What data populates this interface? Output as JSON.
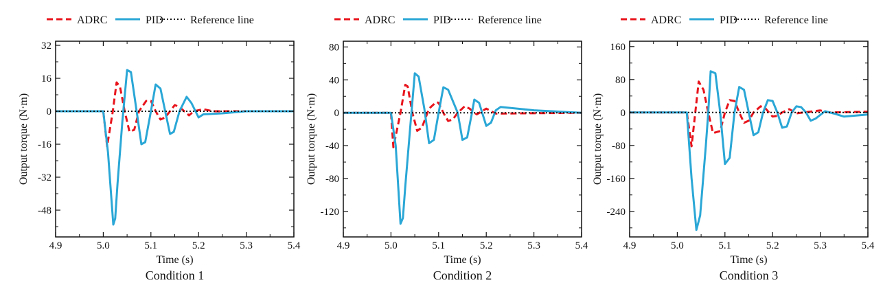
{
  "legend": {
    "items": [
      {
        "label": "ADRC",
        "color": "#e8141c",
        "style": "dashed"
      },
      {
        "label": "PID",
        "color": "#2aa7d6",
        "style": "solid"
      },
      {
        "label": "Reference line",
        "color": "#111111",
        "style": "dotted"
      }
    ]
  },
  "chart_data": [
    {
      "type": "line",
      "caption": "Condition  1",
      "xlabel": "Time (s)",
      "ylabel": "Output torque (N·m)",
      "xlim": [
        4.9,
        5.4
      ],
      "ylim": [
        -61,
        34
      ],
      "xticks": [
        "4.9",
        "5.0",
        "5.1",
        "5.2",
        "5.3",
        "5.4"
      ],
      "yticks": [
        "32",
        "16",
        "0",
        "-16",
        "-32",
        "-48"
      ],
      "grid": false,
      "legend_position": "top",
      "series": [
        {
          "name": "ADRC",
          "x": [
            4.9,
            5.0,
            5.008,
            5.02,
            5.028,
            5.035,
            5.045,
            5.055,
            5.065,
            5.075,
            5.09,
            5.1,
            5.11,
            5.12,
            5.13,
            5.14,
            5.15,
            5.16,
            5.17,
            5.18,
            5.19,
            5.21,
            5.23,
            5.4
          ],
          "y": [
            0,
            0,
            -17,
            0,
            14,
            12,
            0,
            -10,
            -9,
            0,
            5,
            5,
            0,
            -4,
            -3,
            0,
            3,
            2,
            0,
            -2,
            0,
            1,
            0,
            0
          ]
        },
        {
          "name": "PID",
          "x": [
            4.9,
            5.0,
            5.01,
            5.021,
            5.025,
            5.03,
            5.04,
            5.05,
            5.058,
            5.07,
            5.08,
            5.088,
            5.1,
            5.11,
            5.12,
            5.13,
            5.14,
            5.148,
            5.16,
            5.175,
            5.185,
            5.2,
            5.21,
            5.25,
            5.3,
            5.4
          ],
          "y": [
            0,
            0,
            -20,
            -55,
            -52,
            -35,
            -5,
            20,
            19,
            0,
            -16,
            -15,
            0,
            13,
            11,
            0,
            -11,
            -10,
            0,
            7,
            4,
            -3,
            -1.5,
            -1,
            0,
            0
          ]
        },
        {
          "name": "Reference line",
          "x": [
            4.9,
            5.4
          ],
          "y": [
            0,
            0
          ]
        }
      ]
    },
    {
      "type": "line",
      "caption": "Condition  2",
      "xlabel": "Time (s)",
      "ylabel": "Output torque (N·m)",
      "xlim": [
        4.9,
        5.4
      ],
      "ylim": [
        -151,
        87
      ],
      "xticks": [
        "4.9",
        "5.0",
        "5.1",
        "5.2",
        "5.3",
        "5.4"
      ],
      "yticks": [
        "80",
        "40",
        "0",
        "-40",
        "-80",
        "-120"
      ],
      "grid": false,
      "legend_position": "top",
      "series": [
        {
          "name": "ADRC",
          "x": [
            4.9,
            5.0,
            5.005,
            5.02,
            5.03,
            5.035,
            5.045,
            5.055,
            5.065,
            5.08,
            5.095,
            5.1,
            5.11,
            5.12,
            5.13,
            5.14,
            5.155,
            5.165,
            5.18,
            5.2,
            5.22,
            5.4
          ],
          "y": [
            0,
            0,
            -42,
            0,
            34,
            32,
            0,
            -22,
            -18,
            5,
            13,
            12,
            0,
            -10,
            -8,
            0,
            8,
            5,
            -2,
            5,
            -1,
            0
          ]
        },
        {
          "name": "PID",
          "x": [
            4.9,
            5.0,
            5.01,
            5.02,
            5.025,
            5.03,
            5.04,
            5.05,
            5.058,
            5.07,
            5.08,
            5.09,
            5.1,
            5.11,
            5.12,
            5.14,
            5.15,
            5.16,
            5.17,
            5.175,
            5.185,
            5.2,
            5.21,
            5.22,
            5.23,
            5.3,
            5.4
          ],
          "y": [
            0,
            0,
            -40,
            -135,
            -128,
            -90,
            -20,
            48,
            44,
            5,
            -37,
            -33,
            0,
            31,
            28,
            0,
            -33,
            -30,
            0,
            16,
            12,
            -16,
            -12,
            3,
            7,
            3,
            0
          ]
        },
        {
          "name": "Reference line",
          "x": [
            4.9,
            5.4
          ],
          "y": [
            0,
            0
          ]
        }
      ]
    },
    {
      "type": "line",
      "caption": "Condition  3",
      "xlabel": "Time (s)",
      "ylabel": "Output torque (N·m)",
      "xlim": [
        4.9,
        5.4
      ],
      "ylim": [
        -302,
        173
      ],
      "xticks": [
        "4.9",
        "5.0",
        "5.1",
        "5.2",
        "5.3",
        "5.4"
      ],
      "yticks": [
        "160",
        "80",
        "0",
        "-80",
        "-160",
        "-240"
      ],
      "grid": false,
      "legend_position": "top",
      "series": [
        {
          "name": "ADRC",
          "x": [
            4.9,
            5.02,
            5.03,
            5.045,
            5.055,
            5.065,
            5.075,
            5.09,
            5.1,
            5.11,
            5.12,
            5.13,
            5.14,
            5.15,
            5.16,
            5.175,
            5.185,
            5.2,
            5.21,
            5.22,
            5.235,
            5.25,
            5.3,
            5.32,
            5.4
          ],
          "y": [
            0,
            0,
            -82,
            75,
            55,
            0,
            -50,
            -45,
            0,
            30,
            28,
            0,
            -25,
            -20,
            0,
            15,
            10,
            -10,
            -8,
            0,
            8,
            -2,
            5,
            0,
            2
          ]
        },
        {
          "name": "PID",
          "x": [
            4.9,
            5.02,
            5.03,
            5.04,
            5.048,
            5.06,
            5.065,
            5.07,
            5.08,
            5.09,
            5.1,
            5.11,
            5.12,
            5.13,
            5.14,
            5.15,
            5.16,
            5.17,
            5.18,
            5.19,
            5.2,
            5.21,
            5.22,
            5.23,
            5.24,
            5.25,
            5.26,
            5.27,
            5.28,
            5.29,
            5.31,
            5.33,
            5.35,
            5.4
          ],
          "y": [
            0,
            0,
            -160,
            -285,
            -250,
            -80,
            0,
            100,
            95,
            0,
            -125,
            -110,
            0,
            62,
            55,
            0,
            -55,
            -48,
            0,
            30,
            28,
            0,
            -37,
            -34,
            0,
            15,
            13,
            0,
            -20,
            -15,
            3,
            -3,
            -10,
            -5
          ]
        },
        {
          "name": "Reference line",
          "x": [
            4.9,
            5.4
          ],
          "y": [
            0,
            0
          ]
        }
      ]
    }
  ]
}
